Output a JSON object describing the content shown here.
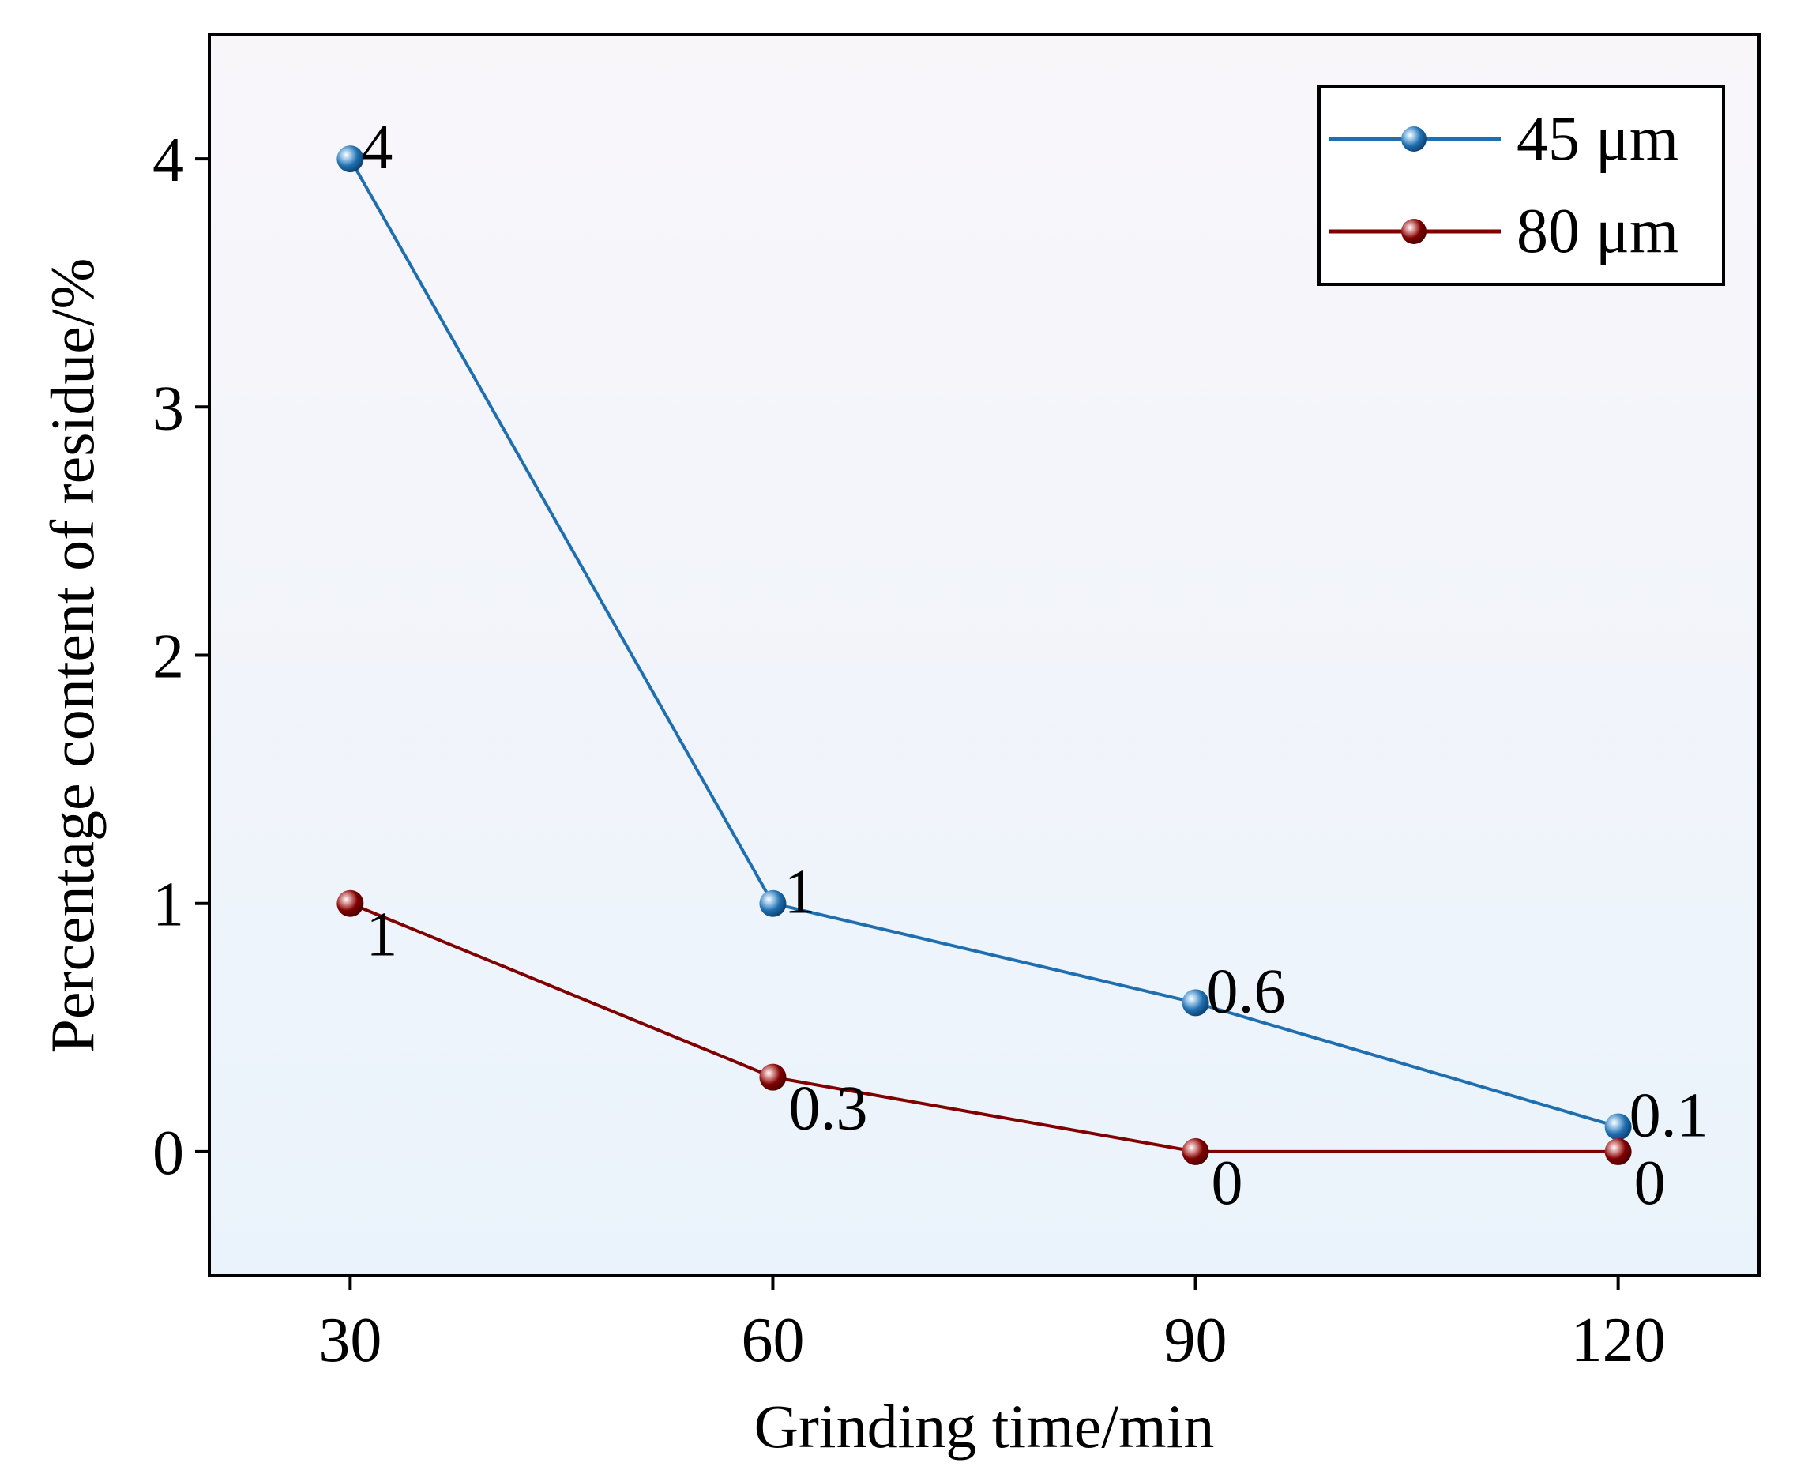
{
  "chart_data": {
    "type": "line",
    "title": "",
    "xlabel": "Grinding time/min",
    "ylabel": "Percentage content of residue/%",
    "x": [
      30,
      60,
      90,
      120
    ],
    "xlim": [
      20,
      130
    ],
    "ylim": [
      -0.5,
      4.5
    ],
    "xticks": [
      30,
      60,
      90,
      120
    ],
    "yticks": [
      0,
      1,
      2,
      3,
      4
    ],
    "grid": false,
    "legend_position": "top-right",
    "series": [
      {
        "name": "45 μm",
        "color": "#1f6fb0",
        "values": [
          4,
          1,
          0.6,
          0.1
        ],
        "labels": [
          "4",
          "1",
          "0.6",
          "0.1"
        ],
        "label_placement": "above-right"
      },
      {
        "name": "80 μm",
        "color": "#800000",
        "values": [
          1,
          0.3,
          0,
          0
        ],
        "labels": [
          "1",
          "0.3",
          "0",
          "0"
        ],
        "label_placement": "below-right"
      }
    ]
  }
}
